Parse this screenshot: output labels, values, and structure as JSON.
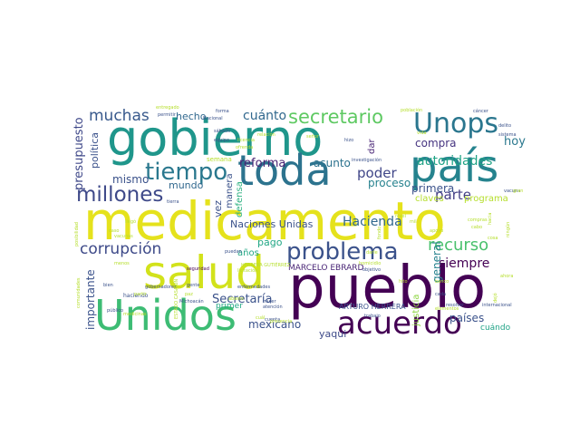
{
  "wordcloud": {
    "words": [
      {
        "text": "medicamento",
        "color": "#e5e21c"
      },
      {
        "text": "pueblo",
        "color": "#440154"
      },
      {
        "text": "gobierno",
        "color": "#1f968b"
      },
      {
        "text": "salud",
        "color": "#d2e21b"
      },
      {
        "text": "Unidos",
        "color": "#3dbc74"
      },
      {
        "text": "país",
        "color": "#25838e"
      },
      {
        "text": "toda",
        "color": "#2c738e"
      },
      {
        "text": "acuerdo",
        "color": "#440154"
      },
      {
        "text": "Unops",
        "color": "#2a768e"
      },
      {
        "text": "millones",
        "color": "#3e4989"
      },
      {
        "text": "problema",
        "color": "#3b528b"
      },
      {
        "text": "tiempo",
        "color": "#2a788e"
      },
      {
        "text": "secretario",
        "color": "#5ec962"
      },
      {
        "text": "corrupción",
        "color": "#3e4a89"
      },
      {
        "text": "recurso",
        "color": "#4ac16d"
      },
      {
        "text": "muchas",
        "color": "#38598c"
      },
      {
        "text": "autoridades",
        "color": "#20a386"
      },
      {
        "text": "presupuesto",
        "color": "#3f4889"
      },
      {
        "text": "cuánto",
        "color": "#31688e"
      },
      {
        "text": "poder",
        "color": "#404688"
      },
      {
        "text": "parte",
        "color": "#433e85"
      },
      {
        "text": "Hacienda",
        "color": "#31688e"
      },
      {
        "text": "Secretaría",
        "color": "#3b528b"
      },
      {
        "text": "siempre",
        "color": "#440154"
      },
      {
        "text": "países",
        "color": "#3b528b"
      },
      {
        "text": "compra",
        "color": "#463480"
      },
      {
        "text": "reforma",
        "color": "#482374"
      },
      {
        "text": "mismo",
        "color": "#3b528b"
      },
      {
        "text": "general",
        "color": "#26828e"
      },
      {
        "text": "importante",
        "color": "#3b528b"
      },
      {
        "text": "mexicano",
        "color": "#3b528b"
      },
      {
        "text": "hoy",
        "color": "#2a788e"
      },
      {
        "text": "asunto",
        "color": "#2c728e"
      },
      {
        "text": "proceso",
        "color": "#26828e"
      },
      {
        "text": "primera",
        "color": "#3b528b"
      },
      {
        "text": "Naciones Unidas",
        "color": "#3b528b"
      },
      {
        "text": "política",
        "color": "#3b528b"
      },
      {
        "text": "pago",
        "color": "#22a785"
      },
      {
        "text": "años",
        "color": "#22a785"
      },
      {
        "text": "defensa",
        "color": "#2ab07f"
      },
      {
        "text": "manera",
        "color": "#3b528b"
      },
      {
        "text": "justicia",
        "color": "#8fd744"
      },
      {
        "text": "mundo",
        "color": "#31688e"
      },
      {
        "text": "hecho",
        "color": "#31688e"
      },
      {
        "text": "vez",
        "color": "#3b528b"
      },
      {
        "text": "claves",
        "color": "#b5de2b"
      },
      {
        "text": "programa",
        "color": "#b5de2b"
      },
      {
        "text": "dar",
        "color": "#482475"
      },
      {
        "text": "MARCELO EBRARD",
        "color": "#482475"
      },
      {
        "text": "ARTURO HERRERA",
        "color": "#3b528b"
      },
      {
        "text": "yaqui",
        "color": "#3e4a89"
      },
      {
        "text": "cuándo",
        "color": "#20a386"
      },
      {
        "text": "primer",
        "color": "#22a785"
      },
      {
        "text": "semana",
        "color": "#b5de2b"
      },
      {
        "text": "investigación",
        "color": "#3b528b"
      },
      {
        "text": "enfermedades",
        "color": "#3b528b"
      },
      {
        "text": "seguridad",
        "color": "#440154"
      },
      {
        "text": "trabajo",
        "color": "#3b528b"
      },
      {
        "text": "objetivo",
        "color": "#3b528b"
      },
      {
        "text": "Michoacán",
        "color": "#3b528b"
      },
      {
        "text": "cuenta",
        "color": "#3b528b"
      },
      {
        "text": "haciendo",
        "color": "#3b528b"
      },
      {
        "text": "gente",
        "color": "#3b528b"
      },
      {
        "text": "bien",
        "color": "#3b528b"
      },
      {
        "text": "cada",
        "color": "#3b528b"
      },
      {
        "text": "internacional",
        "color": "#3b528b"
      },
      {
        "text": "resolver",
        "color": "#3b528b"
      },
      {
        "text": "cáncer",
        "color": "#3b528b"
      },
      {
        "text": "sistema",
        "color": "#3b528b"
      },
      {
        "text": "delito",
        "color": "#3b528b"
      },
      {
        "text": "hizo",
        "color": "#3b528b"
      },
      {
        "text": "Nacional",
        "color": "#3b528b"
      },
      {
        "text": "permitir",
        "color": "#3b528b"
      },
      {
        "text": "forma",
        "color": "#3b528b"
      },
      {
        "text": "sábado",
        "color": "#3b528b"
      },
      {
        "text": "equipo",
        "color": "#3b528b"
      },
      {
        "text": "gobernadores",
        "color": "#3b528b"
      },
      {
        "text": "público",
        "color": "#3b528b"
      },
      {
        "text": "tierra",
        "color": "#3b528b"
      },
      {
        "text": "mujer",
        "color": "#3b528b"
      },
      {
        "text": "puedan",
        "color": "#3b528b"
      },
      {
        "text": "atención",
        "color": "#3b528b"
      },
      {
        "text": "vacuna",
        "color": "#3b528b"
      },
      {
        "text": "población",
        "color": "#b5de2b"
      },
      {
        "text": "entregado",
        "color": "#b5de2b"
      },
      {
        "text": "medicinas",
        "color": "#b5de2b"
      },
      {
        "text": "ofrenda",
        "color": "#b5de2b"
      },
      {
        "text": "elementos",
        "color": "#b5de2b"
      },
      {
        "text": "comunidades",
        "color": "#b5de2b"
      },
      {
        "text": "posibilidad",
        "color": "#b5de2b"
      },
      {
        "text": "licitación",
        "color": "#b5de2b"
      },
      {
        "text": "darle",
        "color": "#b5de2b"
      },
      {
        "text": "apoyo",
        "color": "#b5de2b"
      },
      {
        "text": "banco",
        "color": "#b5de2b"
      },
      {
        "text": "licencia",
        "color": "#b5de2b"
      },
      {
        "text": "hacia",
        "color": "#b5de2b"
      },
      {
        "text": "hito",
        "color": "#b5de2b"
      },
      {
        "text": "relación",
        "color": "#b5de2b"
      },
      {
        "text": "dejó",
        "color": "#b5de2b"
      },
      {
        "text": "abasto",
        "color": "#b5de2b"
      },
      {
        "text": "partir",
        "color": "#b5de2b"
      },
      {
        "text": "vida",
        "color": "#b5de2b"
      },
      {
        "text": "gran",
        "color": "#b5de2b"
      },
      {
        "text": "ESTADO CASARÍN",
        "color": "#b5de2b"
      },
      {
        "text": "HERRERA GUTIÉRREZ",
        "color": "#b5de2b"
      },
      {
        "text": "presencia",
        "color": "#b5de2b"
      },
      {
        "text": "homicidio",
        "color": "#b5de2b"
      },
      {
        "text": "fondo",
        "color": "#b5de2b"
      },
      {
        "text": "ningún",
        "color": "#b5de2b"
      },
      {
        "text": "paz",
        "color": "#b5de2b"
      },
      {
        "text": "cosa",
        "color": "#b5de2b"
      },
      {
        "text": "llegó",
        "color": "#b5de2b"
      },
      {
        "text": "caso",
        "color": "#b5de2b"
      },
      {
        "text": "menos",
        "color": "#b5de2b"
      },
      {
        "text": "cuál",
        "color": "#b5de2b"
      },
      {
        "text": "señor",
        "color": "#b5de2b"
      },
      {
        "text": "compras",
        "color": "#b5de2b"
      },
      {
        "text": "vacunas",
        "color": "#b5de2b"
      },
      {
        "text": "cabo",
        "color": "#b5de2b"
      },
      {
        "text": "nivel",
        "color": "#b5de2b"
      },
      {
        "text": "ahora",
        "color": "#b5de2b"
      },
      {
        "text": "mil",
        "color": "#b5de2b"
      },
      {
        "text": "hace",
        "color": "#b5de2b"
      }
    ]
  }
}
